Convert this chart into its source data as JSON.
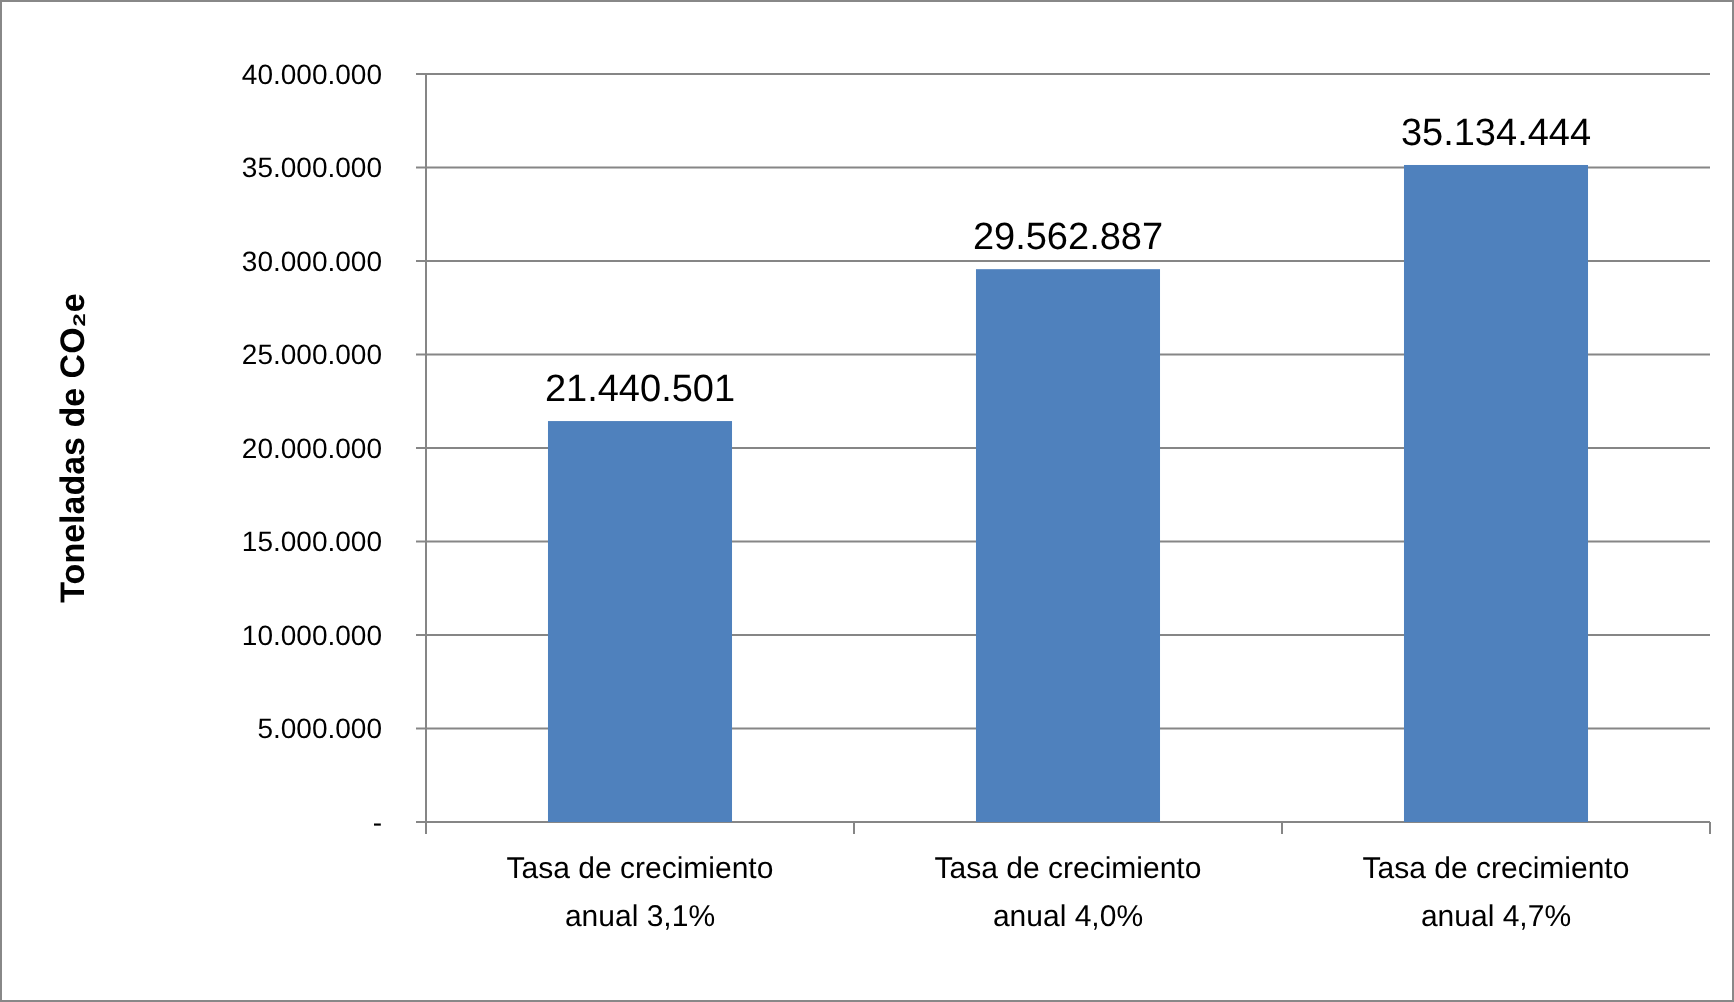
{
  "chart_data": {
    "type": "bar",
    "ylabel": "Toneladas de CO₂e",
    "categories": [
      "Tasa de crecimiento anual 3,1%",
      "Tasa de crecimiento anual 4,0%",
      "Tasa de crecimiento anual 4,7%"
    ],
    "values": [
      21440501,
      29562887,
      35134444
    ],
    "value_labels": [
      "21.440.501",
      "29.562.887",
      "35.134.444"
    ],
    "color": "#4f81bd",
    "ylim": [
      0,
      40000000
    ],
    "yticks": [
      {
        "value": 0,
        "label": "-"
      },
      {
        "value": 5000000,
        "label": "5.000.000"
      },
      {
        "value": 10000000,
        "label": "10.000.000"
      },
      {
        "value": 15000000,
        "label": "15.000.000"
      },
      {
        "value": 20000000,
        "label": "20.000.000"
      },
      {
        "value": 25000000,
        "label": "25.000.000"
      },
      {
        "value": 30000000,
        "label": "30.000.000"
      },
      {
        "value": 35000000,
        "label": "35.000.000"
      },
      {
        "value": 40000000,
        "label": "40.000.000"
      }
    ],
    "grid": "y"
  }
}
